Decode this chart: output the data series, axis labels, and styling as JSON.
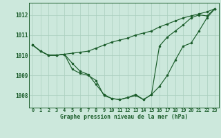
{
  "title": "Graphe pression niveau de la mer (hPa)",
  "background_color": "#cce8dc",
  "grid_color": "#aacfbe",
  "line_color": "#1a5c2a",
  "xlim": [
    -0.5,
    23.5
  ],
  "ylim": [
    1007.4,
    1012.6
  ],
  "yticks": [
    1008,
    1009,
    1010,
    1011,
    1012
  ],
  "xticks": [
    0,
    1,
    2,
    3,
    4,
    5,
    6,
    7,
    8,
    9,
    10,
    11,
    12,
    13,
    14,
    15,
    16,
    17,
    18,
    19,
    20,
    21,
    22,
    23
  ],
  "lineA": [
    1010.5,
    1010.2,
    1010.0,
    1010.0,
    1010.05,
    1010.1,
    1010.15,
    1010.2,
    1010.35,
    1010.5,
    1010.65,
    1010.75,
    1010.85,
    1011.0,
    1011.1,
    1011.2,
    1011.4,
    1011.55,
    1011.7,
    1011.85,
    1011.95,
    1012.05,
    1012.15,
    1012.3
  ],
  "lineB": [
    1010.5,
    1010.2,
    1010.0,
    1010.0,
    1010.05,
    1009.6,
    1009.2,
    1009.05,
    1008.55,
    1008.05,
    1007.85,
    1007.8,
    1007.9,
    1008.0,
    1007.8,
    1008.05,
    1010.45,
    1010.9,
    1011.2,
    1011.5,
    1011.85,
    1012.0,
    1011.95,
    1012.3
  ],
  "lineC": [
    1010.5,
    1010.2,
    1010.0,
    1010.0,
    1010.05,
    1009.3,
    1009.1,
    1009.0,
    1008.75,
    1008.0,
    1007.85,
    1007.8,
    1007.9,
    1008.05,
    1007.8,
    1008.05,
    1008.45,
    1009.0,
    1009.75,
    1010.45,
    1010.6,
    1011.2,
    1011.85,
    1012.3
  ]
}
